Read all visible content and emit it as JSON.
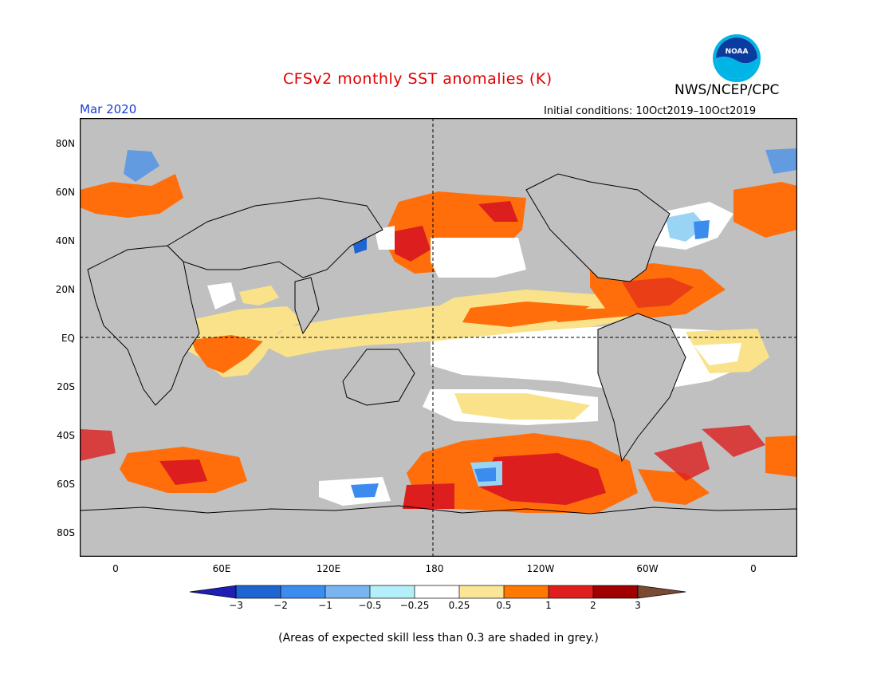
{
  "header": {
    "title": "CFSv2 monthly SST anomalies (K)",
    "date": "Mar 2020",
    "initial_conditions": "Initial conditions: 10Oct2019–10Oct2019",
    "agency": "NWS/NCEP/CPC",
    "logo_text": "NOAA"
  },
  "axes": {
    "lat_ticks": [
      "80N",
      "60N",
      "40N",
      "20N",
      "EQ",
      "20S",
      "40S",
      "60S",
      "80S"
    ],
    "lon_ticks": [
      "0",
      "60E",
      "120E",
      "180",
      "120W",
      "60W",
      "0"
    ]
  },
  "legend": {
    "labels": [
      "−3",
      "−2",
      "−1",
      "−0.5",
      "−0.25",
      "0.25",
      "0.5",
      "1",
      "2",
      "3"
    ],
    "colors": [
      "#1e1eb4",
      "#1e64d2",
      "#3c8cf0",
      "#78b4f0",
      "#b4f0fa",
      "#ffffff",
      "#fae696",
      "#ff7800",
      "#e11e1e",
      "#a00000",
      "#7b4a32"
    ]
  },
  "colors": {
    "grey_mask": "#c0c0c0",
    "neutral": "#ffffff",
    "yellow": "#fae28a",
    "orange": "#ff6e0a",
    "red": "#dc1e1e",
    "blue": "#3c8cf0",
    "lightblue": "#9ad4f5"
  },
  "footnote": "(Areas of expected skill less than 0.3 are shaded in grey.)"
}
